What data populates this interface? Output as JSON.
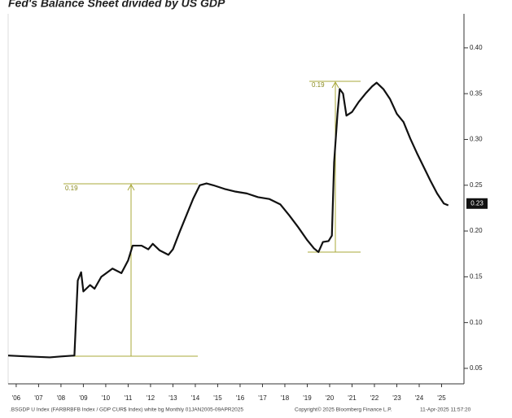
{
  "chart_data": {
    "type": "line",
    "title": "Fed's Balance Sheet divided by US GDP",
    "color": "#111111",
    "x": [
      2005.64,
      2006.5,
      2007.5,
      2008.0,
      2008.6,
      2008.75,
      2008.9,
      2009.0,
      2009.3,
      2009.5,
      2009.8,
      2010.3,
      2010.7,
      2011.0,
      2011.2,
      2011.6,
      2011.9,
      2012.1,
      2012.4,
      2012.8,
      2013.0,
      2013.3,
      2013.6,
      2013.9,
      2014.2,
      2014.5,
      2014.8,
      2015.3,
      2015.8,
      2016.3,
      2016.8,
      2017.3,
      2017.8,
      2018.2,
      2018.6,
      2019.0,
      2019.3,
      2019.5,
      2019.7,
      2019.95,
      2020.1,
      2020.2,
      2020.35,
      2020.45,
      2020.6,
      2020.75,
      2021.0,
      2021.3,
      2021.6,
      2021.9,
      2022.1,
      2022.4,
      2022.7,
      2023.0,
      2023.3,
      2023.6,
      2023.9,
      2024.2,
      2024.5,
      2024.8,
      2025.1,
      2025.3
    ],
    "values": [
      0.064,
      0.063,
      0.062,
      0.063,
      0.064,
      0.146,
      0.155,
      0.134,
      0.141,
      0.137,
      0.15,
      0.159,
      0.154,
      0.168,
      0.184,
      0.184,
      0.18,
      0.186,
      0.179,
      0.174,
      0.18,
      0.199,
      0.217,
      0.235,
      0.25,
      0.252,
      0.25,
      0.246,
      0.243,
      0.241,
      0.237,
      0.235,
      0.229,
      0.217,
      0.204,
      0.19,
      0.181,
      0.177,
      0.188,
      0.189,
      0.195,
      0.275,
      0.328,
      0.355,
      0.35,
      0.326,
      0.33,
      0.341,
      0.35,
      0.358,
      0.362,
      0.355,
      0.344,
      0.328,
      0.319,
      0.301,
      0.285,
      0.27,
      0.255,
      0.241,
      0.23,
      0.228
    ],
    "xlim": [
      2005.64,
      2026.0
    ],
    "xticks": [
      {
        "value": 2006,
        "label": "'06"
      },
      {
        "value": 2007,
        "label": "'07"
      },
      {
        "value": 2008,
        "label": "'08"
      },
      {
        "value": 2009,
        "label": "'09"
      },
      {
        "value": 2010,
        "label": "'10"
      },
      {
        "value": 2011,
        "label": "'11"
      },
      {
        "value": 2012,
        "label": "'12"
      },
      {
        "value": 2013,
        "label": "'13"
      },
      {
        "value": 2014,
        "label": "'14"
      },
      {
        "value": 2015,
        "label": "'15"
      },
      {
        "value": 2016,
        "label": "'16"
      },
      {
        "value": 2017,
        "label": "'17"
      },
      {
        "value": 2018,
        "label": "'18"
      },
      {
        "value": 2019,
        "label": "'19"
      },
      {
        "value": 2020,
        "label": "'20"
      },
      {
        "value": 2021,
        "label": "'21"
      },
      {
        "value": 2022,
        "label": "'22"
      },
      {
        "value": 2023,
        "label": "'23"
      },
      {
        "value": 2024,
        "label": "'24"
      },
      {
        "value": 2025,
        "label": "'25"
      }
    ],
    "ylim": [
      0.033,
      0.437
    ],
    "yticks": [
      0.05,
      {
        "value": 0.1,
        "label": "0.10"
      },
      0.15,
      {
        "value": 0.2,
        "label": "0.20"
      },
      0.25,
      {
        "value": 0.3,
        "label": "0.30"
      },
      0.35,
      {
        "value": 0.4,
        "label": "0.40"
      }
    ],
    "current_value": 0.23,
    "annotations": [
      "0.19",
      "0.19"
    ],
    "footer": [
      ".BSGDP U Index (FARBRBFB Index / GDP CUR$ Index) white bg  Monthly 01JAN2005-09APR2025",
      "Copyright© 2025 Bloomberg Finance L.P.",
      "11-Apr-2025 11:57:20"
    ]
  }
}
